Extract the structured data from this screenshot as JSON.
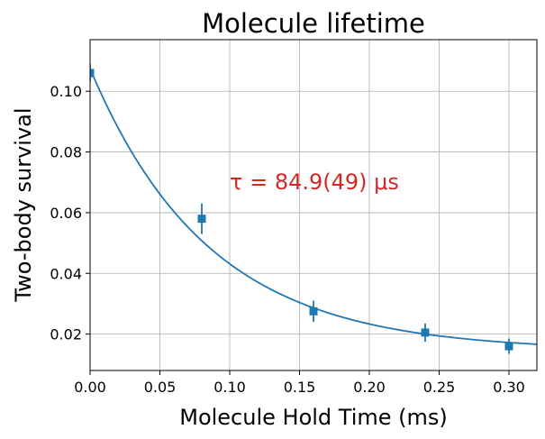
{
  "chart_data": {
    "type": "scatter",
    "title": "Molecule lifetime",
    "xlabel": "Molecule Hold Time (ms)",
    "ylabel": "Two-body survival",
    "xlim": [
      0.0,
      0.32
    ],
    "ylim": [
      0.008,
      0.117
    ],
    "grid": true,
    "x_ticks": [
      0.0,
      0.05,
      0.1,
      0.15,
      0.2,
      0.25,
      0.3
    ],
    "x_tick_labels": [
      "0.00",
      "0.05",
      "0.10",
      "0.15",
      "0.20",
      "0.25",
      "0.30"
    ],
    "y_ticks": [
      0.02,
      0.04,
      0.06,
      0.08,
      0.1
    ],
    "y_tick_labels": [
      "0.02",
      "0.04",
      "0.06",
      "0.08",
      "0.10"
    ],
    "series": [
      {
        "kind": "points-with-errorbars",
        "marker": "square",
        "color": "#1f77b4",
        "x": [
          0.0,
          0.08,
          0.16,
          0.24,
          0.3
        ],
        "y": [
          0.106,
          0.058,
          0.0275,
          0.0205,
          0.016
        ],
        "yerr": [
          0.003,
          0.005,
          0.0035,
          0.003,
          0.0025
        ]
      },
      {
        "kind": "fit-line",
        "color": "#1f77b4",
        "model": "exponential decay",
        "amplitude": 0.093,
        "tau_ms": 0.0849,
        "offset": 0.0145
      }
    ],
    "annotation": {
      "text": "τ = 84.9(49) μs",
      "color": "#d62728",
      "x": 0.1,
      "y": 0.07
    }
  }
}
